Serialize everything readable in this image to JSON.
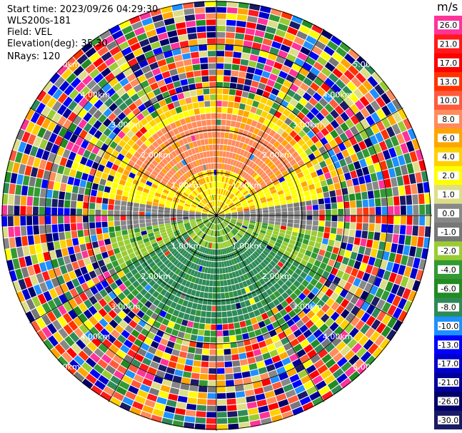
{
  "header": {
    "start_time": "Start time: 2023/09/26 04:29:30",
    "instrument": "WLS200s-181",
    "field": "Field: VEL",
    "elevation": "Elevation(deg): 35.30",
    "nrays": "NRays: 120"
  },
  "plot": {
    "type": "ppi",
    "range_rings_km": [
      1,
      2,
      3,
      4,
      5
    ],
    "ring_labels": [
      "1.00km",
      "2.00km",
      "3.00km",
      "4.00km",
      "5.00km"
    ],
    "rays": 120
  },
  "colorbar": {
    "unit": "m/s",
    "ticks": [
      "26.0",
      "21.0",
      "17.0",
      "13.0",
      "10.0",
      "8.0",
      "6.0",
      "4.0",
      "2.0",
      "1.0",
      "0.0",
      "-1.0",
      "-2.0",
      "-4.0",
      "-6.0",
      "-8.0",
      "-10.0",
      "-13.0",
      "-17.0",
      "-21.0",
      "-26.0",
      "-30.0"
    ],
    "colors": [
      "#ff3399",
      "#ff1a1a",
      "#ff0000",
      "#ff3300",
      "#ff5a3c",
      "#ff8c5a",
      "#ffa500",
      "#ffd000",
      "#ffff00",
      "#dddd88",
      "#888888",
      "#777777",
      "#99cc33",
      "#339933",
      "#228b22",
      "#2e8b57",
      "#1e90ff",
      "#0000ff",
      "#0000cc",
      "#000099",
      "#000066",
      "#1a1a66"
    ]
  }
}
